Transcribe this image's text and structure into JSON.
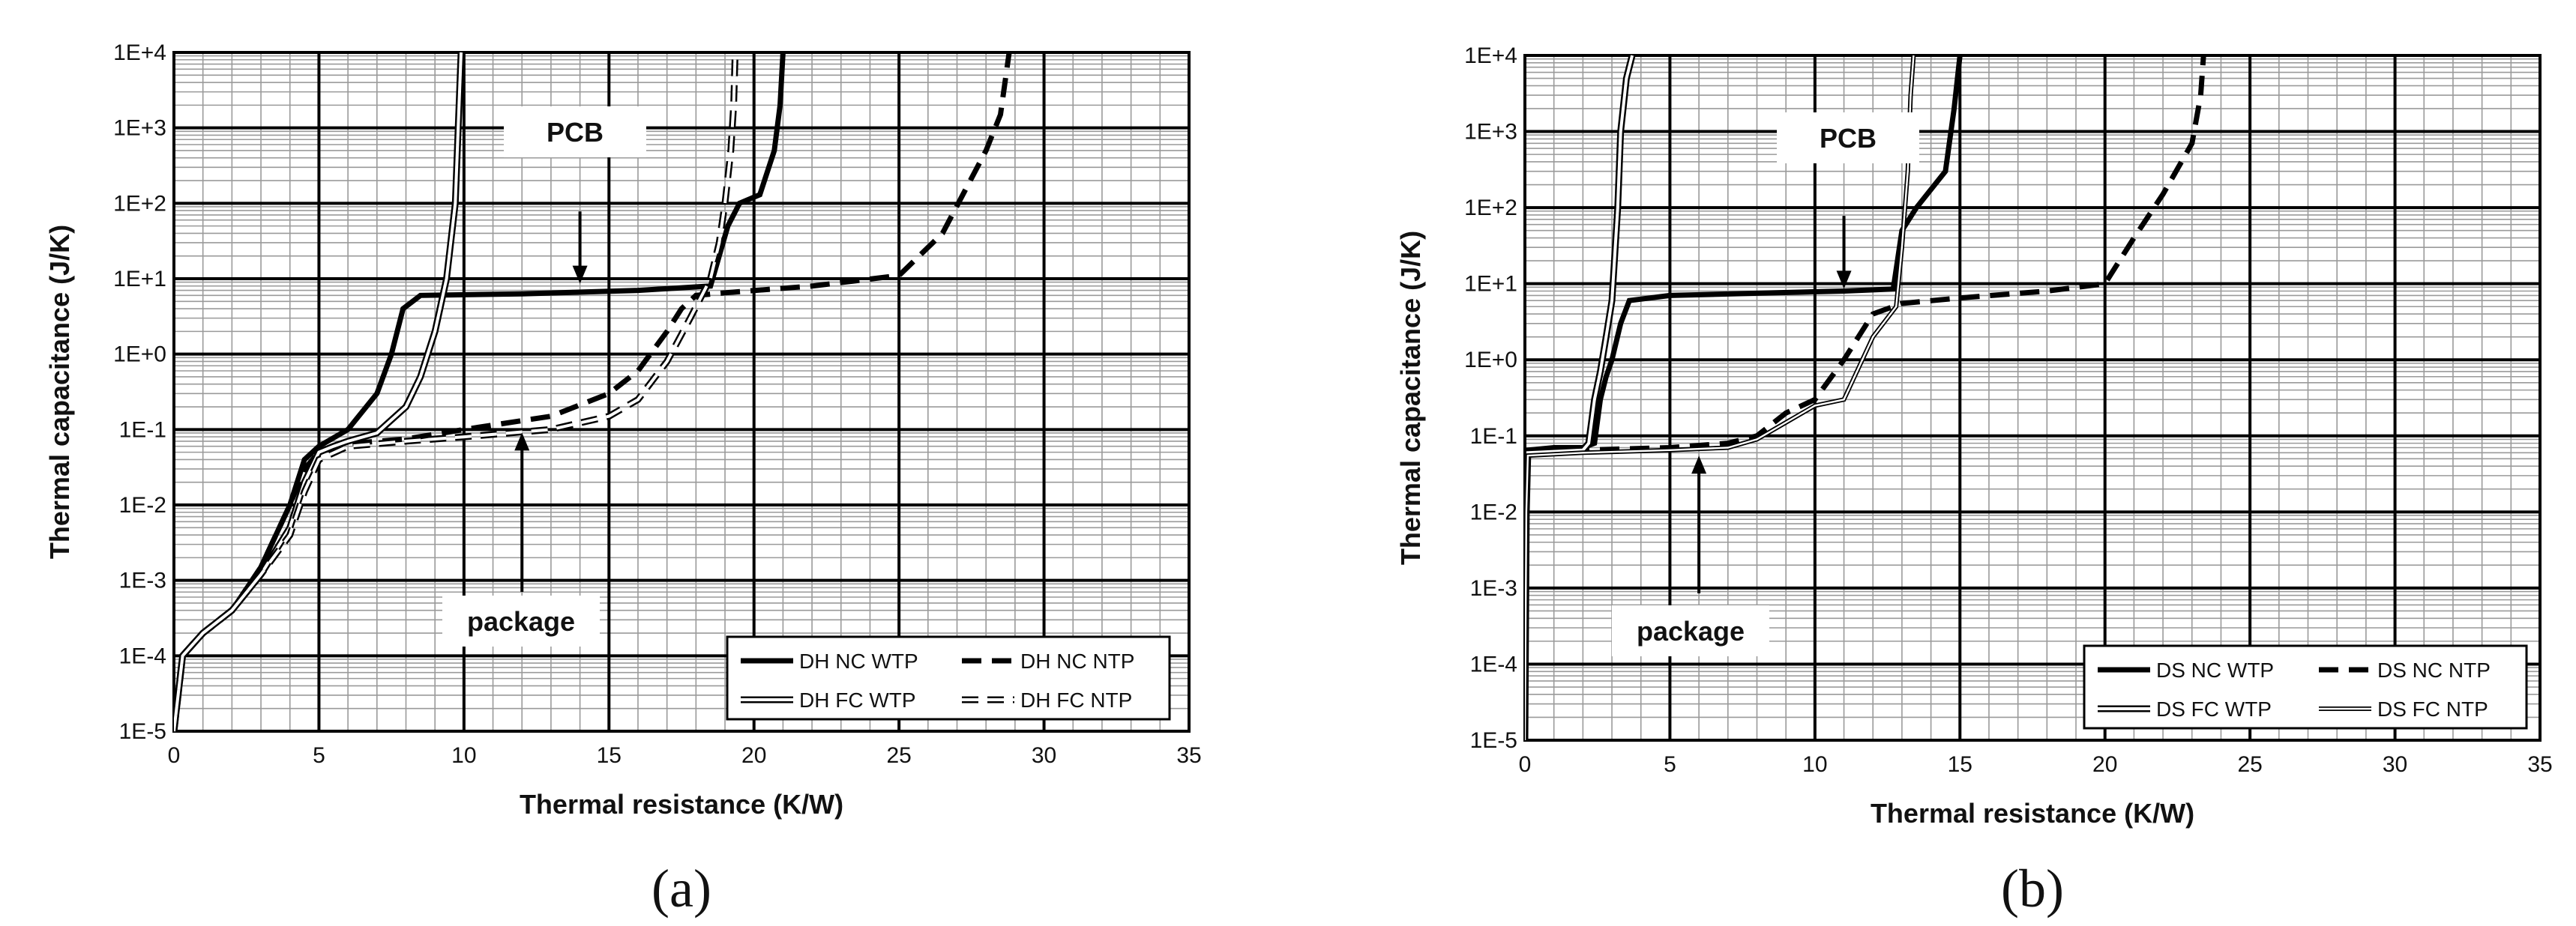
{
  "chart_data": [
    {
      "type": "line",
      "panel_label": "(a)",
      "xlabel": "Thermal resistance (K/W)",
      "ylabel": "Thermal capacitance (J/K)",
      "xlim": [
        0,
        35
      ],
      "ylim": [
        1e-05,
        10000
      ],
      "y_scale": "log",
      "grid": true,
      "x_ticks": [
        "0",
        "5",
        "10",
        "15",
        "20",
        "25",
        "30",
        "35"
      ],
      "y_ticks": [
        "1E-5",
        "1E-4",
        "1E-3",
        "1E-2",
        "1E-1",
        "1E+0",
        "1E+1",
        "1E+2",
        "1E+3",
        "1E+4"
      ],
      "legend_position": "bottom-right",
      "annotations": [
        {
          "text": "PCB",
          "x": 14.0,
          "y": 8
        },
        {
          "text": "package",
          "x": 12.0,
          "y": 0.09
        }
      ],
      "series": [
        {
          "name": "DH NC WTP",
          "style": "solid-thick",
          "x": [
            0,
            0.3,
            1,
            2,
            3,
            4,
            4.5,
            5,
            6,
            7,
            7.5,
            7.9,
            8.5,
            12,
            16,
            18.5,
            19.1,
            19.5,
            20.2,
            20.7,
            20.9,
            21.0
          ],
          "y": [
            1e-05,
            0.0001,
            0.0002,
            0.0004,
            0.0015,
            0.01,
            0.04,
            0.06,
            0.1,
            0.3,
            1,
            4,
            6,
            6.3,
            7,
            8,
            50,
            100,
            130,
            500,
            2000,
            10000
          ]
        },
        {
          "name": "DH NC NTP",
          "style": "dashed-thick",
          "x": [
            0,
            0.3,
            1,
            2,
            3,
            4,
            4.5,
            5,
            6,
            8,
            10,
            13,
            15,
            16,
            17,
            17.5,
            18,
            19,
            22,
            25,
            26.5,
            28,
            28.5,
            28.8
          ],
          "y": [
            1e-05,
            0.0001,
            0.0002,
            0.0004,
            0.0015,
            0.01,
            0.03,
            0.05,
            0.065,
            0.075,
            0.1,
            0.15,
            0.3,
            0.6,
            2,
            4,
            6,
            6.5,
            8,
            11,
            40,
            500,
            1500,
            10000
          ]
        },
        {
          "name": "DH FC WTP",
          "style": "double-line",
          "x": [
            0,
            0.3,
            1,
            2,
            3,
            4,
            4.5,
            5,
            5.5,
            6,
            7,
            8,
            8.5,
            9,
            9.4,
            9.7,
            9.9
          ],
          "y": [
            1e-05,
            0.0001,
            0.0002,
            0.0004,
            0.0012,
            0.005,
            0.02,
            0.05,
            0.06,
            0.07,
            0.09,
            0.2,
            0.5,
            2,
            10,
            100,
            10000
          ]
        },
        {
          "name": "DH FC NTP",
          "style": "double-dashed",
          "x": [
            0,
            0.3,
            1,
            2,
            3,
            4,
            4.5,
            5,
            6,
            8,
            10,
            13,
            15,
            16,
            17,
            17.8,
            18.5,
            18.8,
            19.0,
            19.2,
            19.3,
            19.35
          ],
          "y": [
            1e-05,
            0.0001,
            0.0002,
            0.0004,
            0.0012,
            0.004,
            0.015,
            0.04,
            0.06,
            0.07,
            0.08,
            0.1,
            0.15,
            0.25,
            0.8,
            3,
            10,
            30,
            100,
            500,
            2000,
            10000
          ]
        }
      ]
    },
    {
      "type": "line",
      "panel_label": "(b)",
      "xlabel": "Thermal resistance (K/W)",
      "ylabel": "Thermal capacitance (J/K)",
      "xlim": [
        0,
        35
      ],
      "ylim": [
        1e-05,
        10000
      ],
      "y_scale": "log",
      "grid": true,
      "x_ticks": [
        "0",
        "5",
        "10",
        "15",
        "20",
        "25",
        "30",
        "35"
      ],
      "y_ticks": [
        "1E-5",
        "1E-4",
        "1E-3",
        "1E-2",
        "1E-1",
        "1E+0",
        "1E+1",
        "1E+2",
        "1E+3",
        "1E+4"
      ],
      "legend_position": "bottom-right",
      "annotations": [
        {
          "text": "PCB",
          "x": 11.0,
          "y": 8
        },
        {
          "text": "package",
          "x": 6.0,
          "y": 0.08
        }
      ],
      "series": [
        {
          "name": "DS NC WTP",
          "style": "solid-thick",
          "x": [
            0,
            0.05,
            0.1,
            1,
            2,
            2.4,
            2.6,
            2.8,
            3.0,
            3.3,
            3.6,
            5,
            8,
            11,
            12.7,
            13.0,
            13.5,
            14.5,
            14.8,
            15.0
          ],
          "y": [
            1e-05,
            0.01,
            0.065,
            0.07,
            0.07,
            0.08,
            0.3,
            0.6,
            1,
            3,
            6,
            7,
            7.5,
            8,
            8.5,
            50,
            100,
            300,
            2000,
            10000
          ]
        },
        {
          "name": "DS NC NTP",
          "style": "dashed-thick",
          "x": [
            0,
            0.05,
            0.1,
            2,
            5,
            7,
            8,
            9,
            10,
            11,
            12,
            13,
            15,
            18,
            20,
            21,
            22,
            23,
            23.3,
            23.4
          ],
          "y": [
            1e-05,
            0.01,
            0.06,
            0.065,
            0.07,
            0.08,
            0.1,
            0.2,
            0.3,
            1,
            4,
            5.5,
            6.5,
            8,
            10,
            40,
            150,
            700,
            3000,
            10000
          ]
        },
        {
          "name": "DS FC WTP",
          "style": "double-line",
          "x": [
            0,
            0.05,
            0.1,
            2,
            2.2,
            2.4,
            2.6,
            2.8,
            3.0,
            3.2,
            3.3,
            3.5,
            3.7
          ],
          "y": [
            1e-05,
            0.01,
            0.06,
            0.065,
            0.08,
            0.3,
            0.7,
            2,
            6,
            100,
            1000,
            5000,
            10000
          ]
        },
        {
          "name": "DS FC NTP",
          "style": "double-thin",
          "x": [
            0,
            0.05,
            0.1,
            2,
            5,
            7,
            8,
            9,
            10,
            11,
            12,
            12.8,
            13.0,
            13.2,
            13.3,
            13.4
          ],
          "y": [
            1e-05,
            0.01,
            0.055,
            0.06,
            0.065,
            0.07,
            0.09,
            0.15,
            0.25,
            0.3,
            2,
            5,
            30,
            300,
            3000,
            10000
          ]
        }
      ]
    }
  ]
}
